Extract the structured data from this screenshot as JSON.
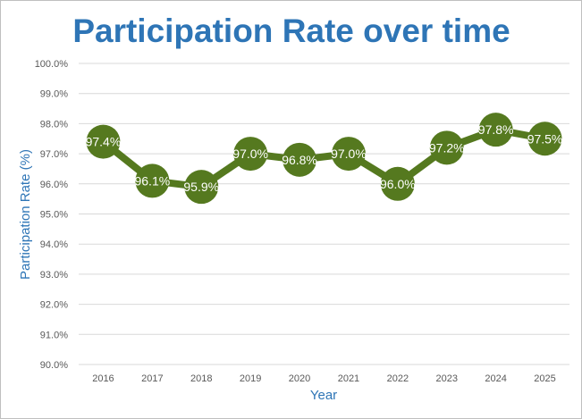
{
  "chart_data": {
    "type": "line",
    "title": "Participation Rate over time",
    "xlabel": "Year",
    "ylabel": "Participation Rate (%)",
    "categories": [
      "2016",
      "2017",
      "2018",
      "2019",
      "2020",
      "2021",
      "2022",
      "2023",
      "2024",
      "2025"
    ],
    "values": [
      97.4,
      96.1,
      95.9,
      97.0,
      96.8,
      97.0,
      96.0,
      97.2,
      97.8,
      97.5
    ],
    "data_labels": [
      "97.4%",
      "96.1%",
      "95.9%",
      "97.0%",
      "96.8%",
      "97.0%",
      "96.0%",
      "97.2%",
      "97.8%",
      "97.5%"
    ],
    "ylim": [
      90,
      100
    ],
    "yticks": [
      "90.0%",
      "91.0%",
      "92.0%",
      "93.0%",
      "94.0%",
      "95.0%",
      "96.0%",
      "97.0%",
      "98.0%",
      "99.0%",
      "100.0%"
    ],
    "grid": true,
    "legend": "none",
    "colors": {
      "title": "#2E75B6",
      "axis_label": "#2E75B6",
      "series": "#55791F",
      "grid": "#d9d9d9",
      "tick": "#595959"
    }
  }
}
